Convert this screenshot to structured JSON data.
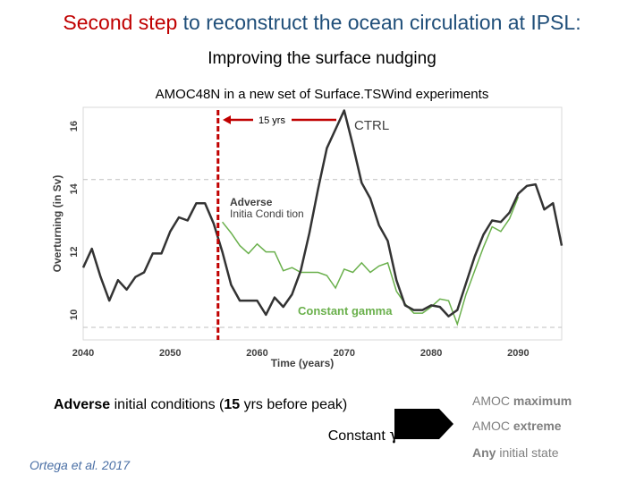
{
  "slide": {
    "title_highlight": "Second step",
    "title_rest": "to reconstruct the ocean circulation at IPSL:",
    "subtitle": "Improving the surface nudging",
    "adverse_line_prefix": "Adverse",
    "adverse_line_mid": "initial conditions (",
    "adverse_line_num": "15",
    "adverse_line_suffix": "yrs before peak)",
    "constant_label": "Constant",
    "gamma_symbol": "γ",
    "results": [
      {
        "plain": "AMOC",
        "bold": "maximum",
        "tail": ""
      },
      {
        "plain": "AMOC",
        "bold": "extreme",
        "tail": ""
      },
      {
        "plain": "",
        "bold": "Any",
        "tail": "initial state"
      }
    ],
    "citation": "Ortega et al. 2017",
    "colors": {
      "title": "#1f4e79",
      "highlight": "#c00000",
      "ctrl": "#333333",
      "gamma": "#6ab04c",
      "marker": "#c00000",
      "result": "#7f7f7f",
      "citation": "#4a6fa5"
    }
  },
  "chart_data": {
    "type": "line",
    "title": "AMOC48N in a new set of Surface.TSWind experiments",
    "xlabel": "Time (years)",
    "ylabel": "Overturning (in Sv)",
    "xlim": [
      2040,
      2095
    ],
    "ylim": [
      9.2,
      16.6
    ],
    "xticks": [
      2040,
      2050,
      2060,
      2070,
      2080,
      2090
    ],
    "yticks": [
      10,
      12,
      14,
      16
    ],
    "dashed_reference_lines": [
      14.3,
      9.6
    ],
    "marker_year": 2055.5,
    "annotations": {
      "span_label": "15 yrs",
      "ctrl_label": "CTRL",
      "adverse_label_1": "Adverse",
      "adverse_label_2": "Initia Condi tion",
      "gamma_label": "Constant gamma"
    },
    "series": [
      {
        "name": "CTRL",
        "x": [
          2040,
          2041,
          2042,
          2043,
          2044,
          2045,
          2046,
          2047,
          2048,
          2049,
          2050,
          2051,
          2052,
          2053,
          2054,
          2055,
          2056,
          2057,
          2058,
          2059,
          2060,
          2061,
          2062,
          2063,
          2064,
          2065,
          2066,
          2067,
          2068,
          2069,
          2070,
          2071,
          2072,
          2073,
          2074,
          2075,
          2076,
          2077,
          2078,
          2079,
          2080,
          2081,
          2082,
          2083,
          2084,
          2085,
          2086,
          2087,
          2088,
          2089,
          2090,
          2091,
          2092,
          2093,
          2094,
          2095
        ],
        "values": [
          11.5,
          12.1,
          11.2,
          10.45,
          11.1,
          10.8,
          11.2,
          11.35,
          11.95,
          11.95,
          12.65,
          13.1,
          13.0,
          13.55,
          13.55,
          12.9,
          12.0,
          10.95,
          10.45,
          10.45,
          10.45,
          10.0,
          10.55,
          10.25,
          10.65,
          11.4,
          12.6,
          14.0,
          15.3,
          15.9,
          16.5,
          15.4,
          14.2,
          13.7,
          12.85,
          12.35,
          11.1,
          10.3,
          10.15,
          10.15,
          10.3,
          10.25,
          9.95,
          10.15,
          11.0,
          11.85,
          12.55,
          13.0,
          12.95,
          13.25,
          13.85,
          14.1,
          14.15,
          13.35,
          13.55,
          12.2
        ]
      },
      {
        "name": "Constant gamma",
        "x": [
          2056,
          2057,
          2058,
          2059,
          2060,
          2061,
          2062,
          2063,
          2064,
          2065,
          2066,
          2067,
          2068,
          2069,
          2070,
          2071,
          2072,
          2073,
          2074,
          2075,
          2076,
          2077,
          2078,
          2079,
          2080,
          2081,
          2082,
          2083,
          2084,
          2085,
          2086,
          2087,
          2088,
          2089,
          2090
        ],
        "values": [
          12.95,
          12.6,
          12.2,
          11.95,
          12.25,
          12.0,
          12.0,
          11.4,
          11.5,
          11.35,
          11.35,
          11.35,
          11.25,
          10.85,
          11.45,
          11.35,
          11.65,
          11.35,
          11.55,
          11.65,
          10.75,
          10.35,
          10.05,
          10.05,
          10.25,
          10.5,
          10.45,
          9.7,
          10.65,
          11.4,
          12.15,
          12.8,
          12.65,
          13.05,
          13.75
        ]
      }
    ]
  }
}
